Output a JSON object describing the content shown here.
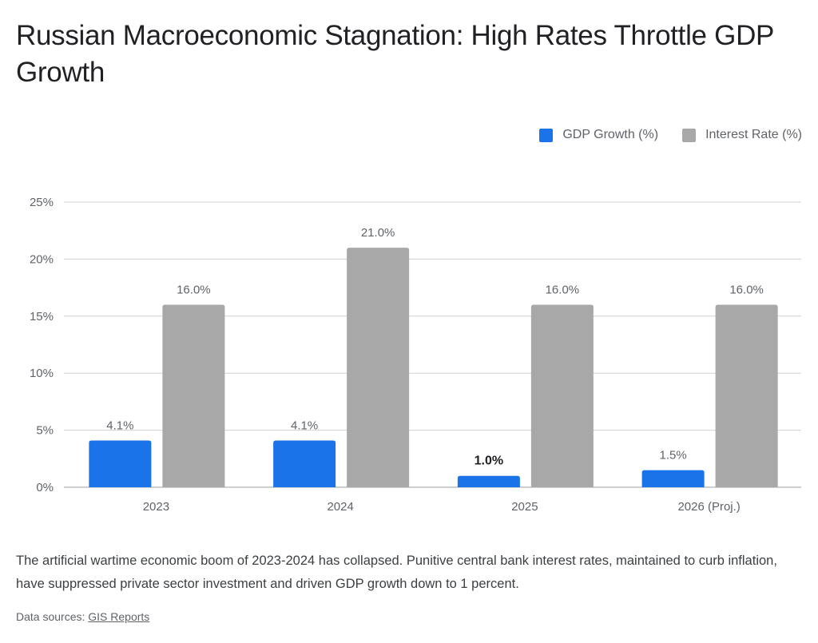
{
  "title": "Russian Macroeconomic Stagnation: High Rates Throttle GDP Growth",
  "description": "The artificial wartime economic boom of 2023-2024 has collapsed. Punitive central bank interest rates, maintained to curb inflation, have suppressed private sector investment and driven GDP growth down to 1 percent.",
  "sources_label": "Data sources:",
  "sources_link": "GIS Reports",
  "chart_data": {
    "type": "bar",
    "title": "Russian Macroeconomic Stagnation: High Rates Throttle GDP Growth",
    "xlabel": "",
    "ylabel": "",
    "ylim": [
      0,
      25
    ],
    "yticks": [
      0,
      5,
      10,
      15,
      20,
      25
    ],
    "ytick_labels": [
      "0%",
      "5%",
      "10%",
      "15%",
      "20%",
      "25%"
    ],
    "grid": true,
    "legend_position": "top-right",
    "categories": [
      "2023",
      "2024",
      "2025",
      "2026 (Proj.)"
    ],
    "series": [
      {
        "name": "GDP Growth (%)",
        "color": "#1a73e8",
        "values": [
          4.1,
          4.1,
          1.0,
          1.5
        ],
        "labels": [
          "4.1%",
          "4.1%",
          "1.0%",
          "1.5%"
        ],
        "emphasized_index": 2
      },
      {
        "name": "Interest Rate (%)",
        "color": "#a8a8a8",
        "values": [
          16.0,
          21.0,
          16.0,
          16.0
        ],
        "labels": [
          "16.0%",
          "21.0%",
          "16.0%",
          "16.0%"
        ]
      }
    ]
  }
}
